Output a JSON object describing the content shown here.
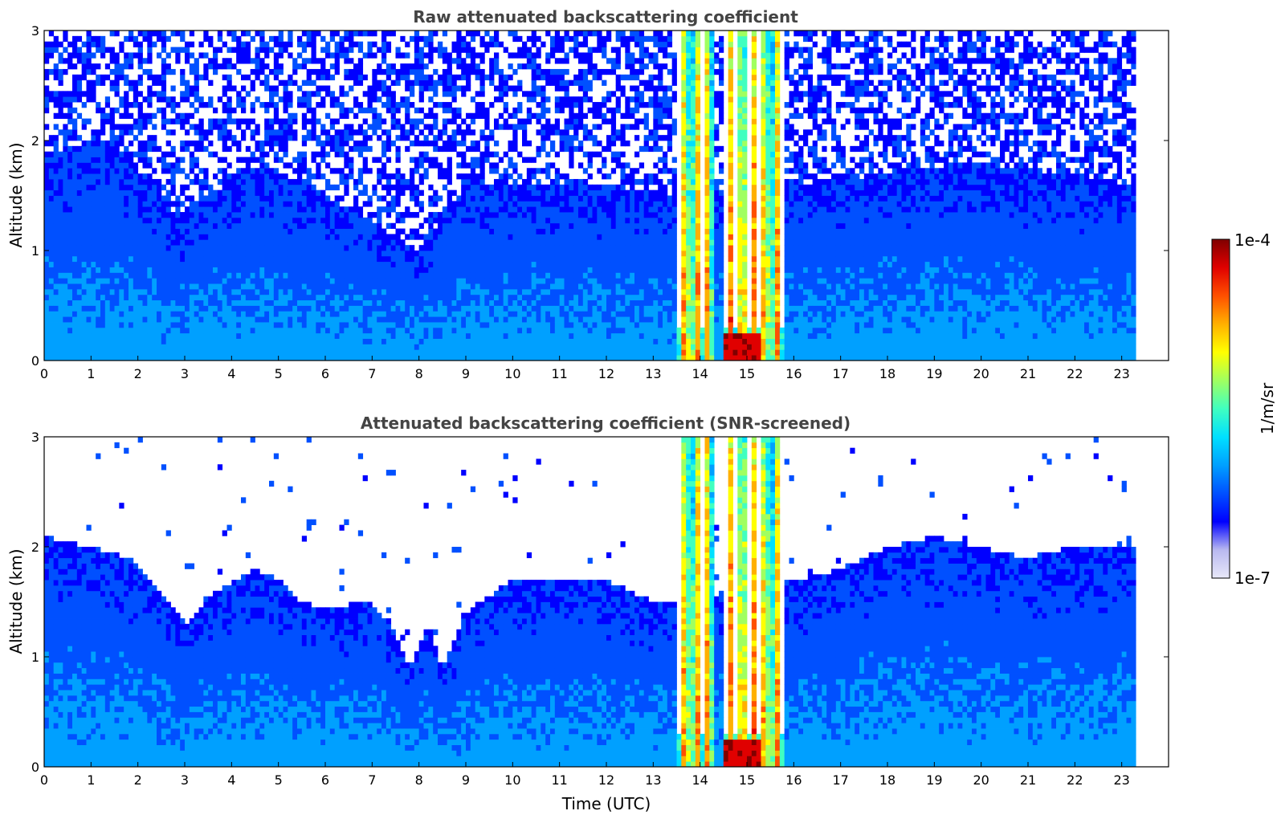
{
  "chart_data": [
    {
      "type": "heatmap",
      "title": "Raw attenuated backscattering coefficient",
      "xlabel": "",
      "ylabel": "Altitude (km)",
      "xlim": [
        0,
        24
      ],
      "ylim": [
        0,
        3
      ],
      "xticks": [
        "0",
        "1",
        "2",
        "3",
        "4",
        "5",
        "6",
        "7",
        "8",
        "9",
        "10",
        "11",
        "12",
        "13",
        "14",
        "15",
        "16",
        "17",
        "18",
        "19",
        "20",
        "21",
        "22",
        "23"
      ],
      "yticks": [
        "0",
        "1",
        "2",
        "3"
      ],
      "data_end_time": 23.3,
      "boundary_layer_top": [
        {
          "time": 0.0,
          "alt": 1.9
        },
        {
          "time": 1.5,
          "alt": 2.0
        },
        {
          "time": 2.9,
          "alt": 1.3
        },
        {
          "time": 3.5,
          "alt": 1.5
        },
        {
          "time": 4.7,
          "alt": 1.8
        },
        {
          "time": 6.0,
          "alt": 1.5
        },
        {
          "time": 8.0,
          "alt": 1.0
        },
        {
          "time": 9.0,
          "alt": 1.6
        },
        {
          "time": 12.0,
          "alt": 1.6
        },
        {
          "time": 13.5,
          "alt": 1.5
        },
        {
          "time": 16.0,
          "alt": 1.6
        },
        {
          "time": 18.0,
          "alt": 1.7
        },
        {
          "time": 20.0,
          "alt": 1.8
        },
        {
          "time": 23.3,
          "alt": 1.6
        }
      ],
      "cloud_episodes": [
        {
          "t_start": 13.5,
          "t_end": 14.3,
          "max_alt": 3.0
        },
        {
          "t_start": 14.5,
          "t_end": 15.8,
          "max_alt": 3.0
        }
      ]
    },
    {
      "type": "heatmap",
      "title": "Attenuated backscattering coefficient (SNR-screened)",
      "xlabel": "Time (UTC)",
      "ylabel": "Altitude (km)",
      "xlim": [
        0,
        24
      ],
      "ylim": [
        0,
        3
      ],
      "xticks": [
        "0",
        "1",
        "2",
        "3",
        "4",
        "5",
        "6",
        "7",
        "8",
        "9",
        "10",
        "11",
        "12",
        "13",
        "14",
        "15",
        "16",
        "17",
        "18",
        "19",
        "20",
        "21",
        "22",
        "23"
      ],
      "yticks": [
        "0",
        "1",
        "2",
        "3"
      ],
      "data_end_time": 23.3,
      "boundary_layer_top": [
        {
          "time": 0.0,
          "alt": 2.1
        },
        {
          "time": 1.0,
          "alt": 2.0
        },
        {
          "time": 1.8,
          "alt": 1.9
        },
        {
          "time": 2.5,
          "alt": 1.6
        },
        {
          "time": 3.0,
          "alt": 1.3
        },
        {
          "time": 3.5,
          "alt": 1.55
        },
        {
          "time": 4.5,
          "alt": 1.8
        },
        {
          "time": 5.0,
          "alt": 1.7
        },
        {
          "time": 5.5,
          "alt": 1.5
        },
        {
          "time": 6.0,
          "alt": 1.45
        },
        {
          "time": 7.0,
          "alt": 1.5
        },
        {
          "time": 7.5,
          "alt": 1.2
        },
        {
          "time": 7.8,
          "alt": 0.9
        },
        {
          "time": 8.2,
          "alt": 1.3
        },
        {
          "time": 8.5,
          "alt": 0.9
        },
        {
          "time": 9.0,
          "alt": 1.4
        },
        {
          "time": 10.0,
          "alt": 1.7
        },
        {
          "time": 11.0,
          "alt": 1.7
        },
        {
          "time": 12.0,
          "alt": 1.7
        },
        {
          "time": 13.0,
          "alt": 1.5
        },
        {
          "time": 13.5,
          "alt": 1.5
        },
        {
          "time": 16.0,
          "alt": 1.7
        },
        {
          "time": 17.0,
          "alt": 1.8
        },
        {
          "time": 18.0,
          "alt": 2.0
        },
        {
          "time": 19.0,
          "alt": 2.1
        },
        {
          "time": 20.0,
          "alt": 2.0
        },
        {
          "time": 21.0,
          "alt": 1.9
        },
        {
          "time": 22.0,
          "alt": 2.0
        },
        {
          "time": 23.3,
          "alt": 2.0
        }
      ],
      "cloud_episodes": [
        {
          "t_start": 13.5,
          "t_end": 14.3,
          "max_alt": 3.0
        },
        {
          "t_start": 14.5,
          "t_end": 15.8,
          "max_alt": 3.0
        }
      ]
    }
  ],
  "colorbar": {
    "label": "1/m/sr",
    "max_label": "1e-4",
    "min_label": "1e-7",
    "scale": "log",
    "range": [
      1e-07,
      0.0001
    ],
    "colormap": [
      "#e8e8f8",
      "#b8b8f0",
      "#0000ff",
      "#0050ff",
      "#00a0ff",
      "#00e0ff",
      "#40ffc0",
      "#a0ff60",
      "#ffff00",
      "#ffb000",
      "#ff5000",
      "#e00000",
      "#800000"
    ]
  }
}
